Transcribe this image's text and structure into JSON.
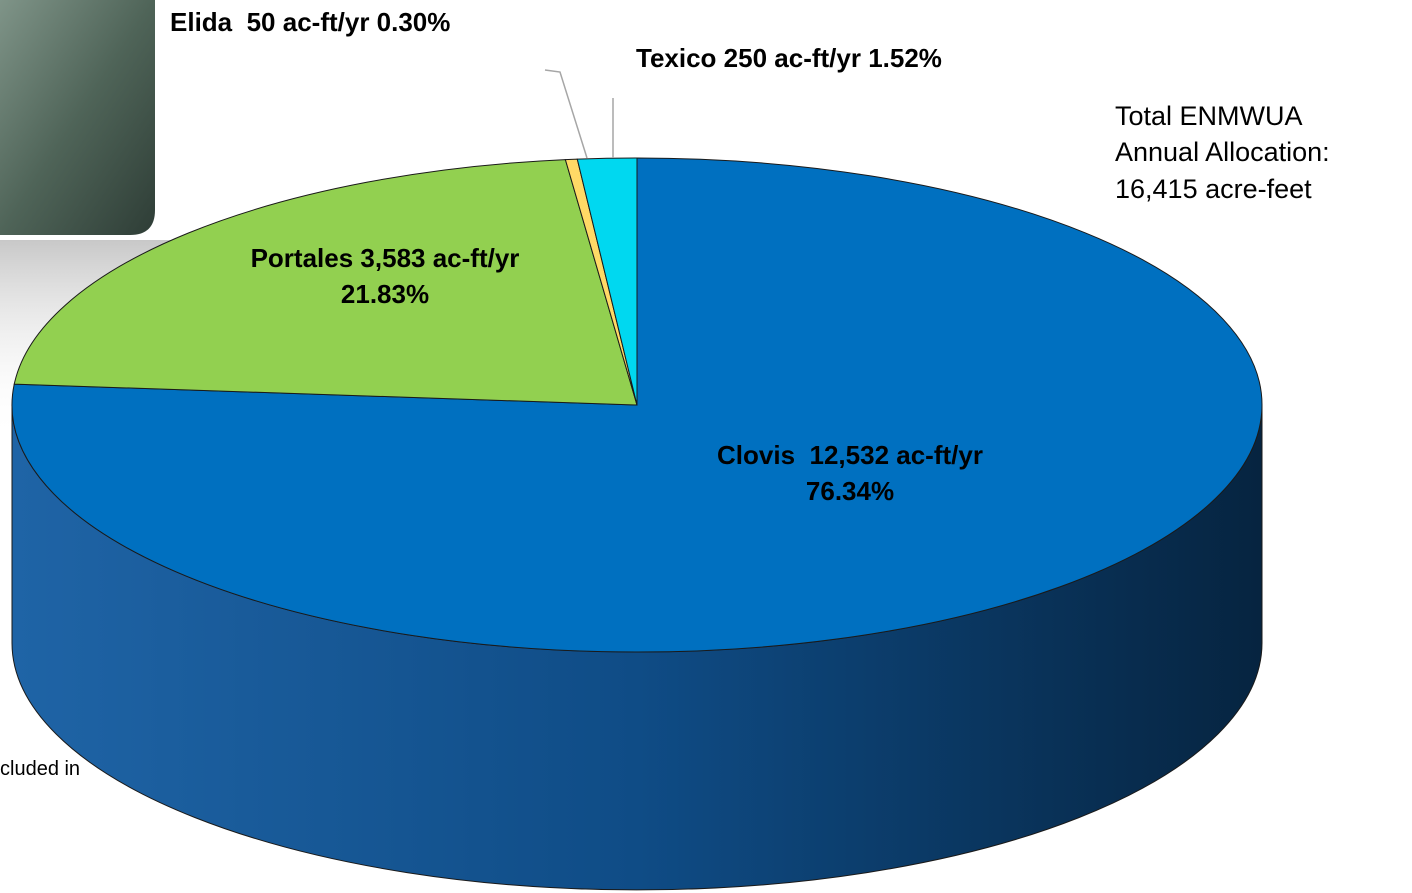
{
  "chart_data": {
    "type": "pie3d",
    "categories": [
      "Clovis",
      "Portales",
      "Elida",
      "Texico"
    ],
    "values": [
      12532,
      3583,
      50,
      250
    ],
    "value_labels": [
      "12,532 ac-ft/yr 76.34%",
      "3,583 ac-ft/yr 21.83%",
      "50 ac-ft/yr 0.30%",
      "250 ac-ft/yr 1.52%"
    ],
    "colors": [
      "#0070c0",
      "#92d050",
      "#ffd966",
      "#00d8f0"
    ],
    "annotations": [
      "Total ENMWUA Annual Allocation: 16,415 acre-feet",
      "cluded in"
    ]
  }
}
